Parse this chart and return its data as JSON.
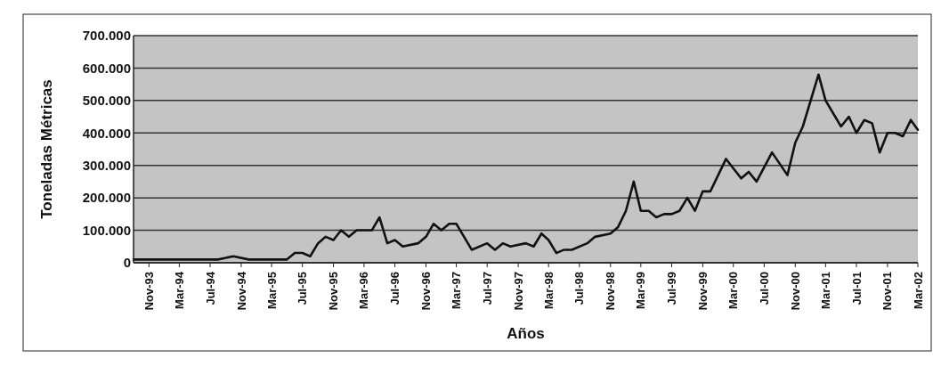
{
  "chart_data": {
    "type": "line",
    "xlabel": "Años",
    "ylabel": "Toneladas Métricas",
    "x": [
      "1993-09",
      "1994-01",
      "1994-05",
      "1994-08",
      "1994-10",
      "1994-12",
      "1995-05",
      "1995-06",
      "1995-07",
      "1995-08",
      "1995-09",
      "1995-10",
      "1995-11",
      "1995-12",
      "1996-01",
      "1996-02",
      "1996-04",
      "1996-05",
      "1996-06",
      "1996-07",
      "1996-08",
      "1996-10",
      "1996-11",
      "1996-12",
      "1997-01",
      "1997-02",
      "1997-03",
      "1997-05",
      "1997-07",
      "1997-08",
      "1997-09",
      "1997-10",
      "1997-12",
      "1998-01",
      "1998-02",
      "1998-03",
      "1998-04",
      "1998-05",
      "1998-06",
      "1998-08",
      "1998-09",
      "1998-11",
      "1998-12",
      "1999-01",
      "1999-02",
      "1999-03",
      "1999-04",
      "1999-05",
      "1999-06",
      "1999-07",
      "1999-08",
      "1999-09",
      "1999-10",
      "1999-11",
      "1999-12",
      "2000-02",
      "2000-04",
      "2000-05",
      "2000-06",
      "2000-08",
      "2000-10",
      "2000-11",
      "2000-12",
      "2001-02",
      "2001-03",
      "2001-05",
      "2001-06",
      "2001-07",
      "2001-08",
      "2001-09",
      "2001-10",
      "2001-11",
      "2001-12",
      "2002-01",
      "2002-02",
      "2002-03"
    ],
    "series": [
      {
        "color": "#111111",
        "values": [
          10000,
          10000,
          10000,
          10000,
          20000,
          10000,
          10000,
          30000,
          30000,
          20000,
          60000,
          80000,
          70000,
          100000,
          80000,
          100000,
          100000,
          140000,
          60000,
          70000,
          50000,
          60000,
          80000,
          120000,
          100000,
          120000,
          120000,
          40000,
          60000,
          40000,
          60000,
          50000,
          60000,
          50000,
          90000,
          70000,
          30000,
          40000,
          40000,
          60000,
          80000,
          90000,
          110000,
          160000,
          250000,
          160000,
          160000,
          140000,
          150000,
          150000,
          160000,
          200000,
          160000,
          220000,
          220000,
          320000,
          260000,
          280000,
          250000,
          340000,
          270000,
          370000,
          420000,
          580000,
          500000,
          420000,
          450000,
          400000,
          440000,
          430000,
          340000,
          400000,
          400000,
          390000,
          440000,
          410000
        ]
      }
    ],
    "xlim": [
      "1993-09",
      "2002-03"
    ],
    "xticks": [
      {
        "value": "1993-11",
        "label": "Nov-93"
      },
      {
        "value": "1994-03",
        "label": "Mar-94"
      },
      {
        "value": "1994-07",
        "label": "Jul-94"
      },
      {
        "value": "1994-11",
        "label": "Nov-94"
      },
      {
        "value": "1995-03",
        "label": "Mar-95"
      },
      {
        "value": "1995-07",
        "label": "Jul-95"
      },
      {
        "value": "1995-11",
        "label": "Nov-95"
      },
      {
        "value": "1996-03",
        "label": "Mar-96"
      },
      {
        "value": "1996-07",
        "label": "Jul-96"
      },
      {
        "value": "1996-11",
        "label": "Nov-96"
      },
      {
        "value": "1997-03",
        "label": "Mar-97"
      },
      {
        "value": "1997-07",
        "label": "Jul-97"
      },
      {
        "value": "1997-11",
        "label": "Nov-97"
      },
      {
        "value": "1998-03",
        "label": "Mar-98"
      },
      {
        "value": "1998-07",
        "label": "Jul-98"
      },
      {
        "value": "1998-11",
        "label": "Nov-98"
      },
      {
        "value": "1999-03",
        "label": "Mar-99"
      },
      {
        "value": "1999-07",
        "label": "Jul-99"
      },
      {
        "value": "1999-11",
        "label": "Nov-99"
      },
      {
        "value": "2000-03",
        "label": "Mar-00"
      },
      {
        "value": "2000-07",
        "label": "Jul-00"
      },
      {
        "value": "2000-11",
        "label": "Nov-00"
      },
      {
        "value": "2001-03",
        "label": "Mar-01"
      },
      {
        "value": "2001-07",
        "label": "Jul-01"
      },
      {
        "value": "2001-11",
        "label": "Nov-01"
      },
      {
        "value": "2002-03",
        "label": "Mar-02"
      }
    ],
    "ylim": [
      0,
      700000
    ],
    "yticks": [
      0,
      {
        "value": 100000,
        "label": "100.000"
      },
      {
        "value": 200000,
        "label": "200.000"
      },
      {
        "value": 300000,
        "label": "300.000"
      },
      {
        "value": 400000,
        "label": "400.000"
      },
      {
        "value": 500000,
        "label": "500.000"
      },
      {
        "value": 600000,
        "label": "600.000"
      },
      {
        "value": 700000,
        "label": "700.000"
      }
    ],
    "grid": "y"
  }
}
